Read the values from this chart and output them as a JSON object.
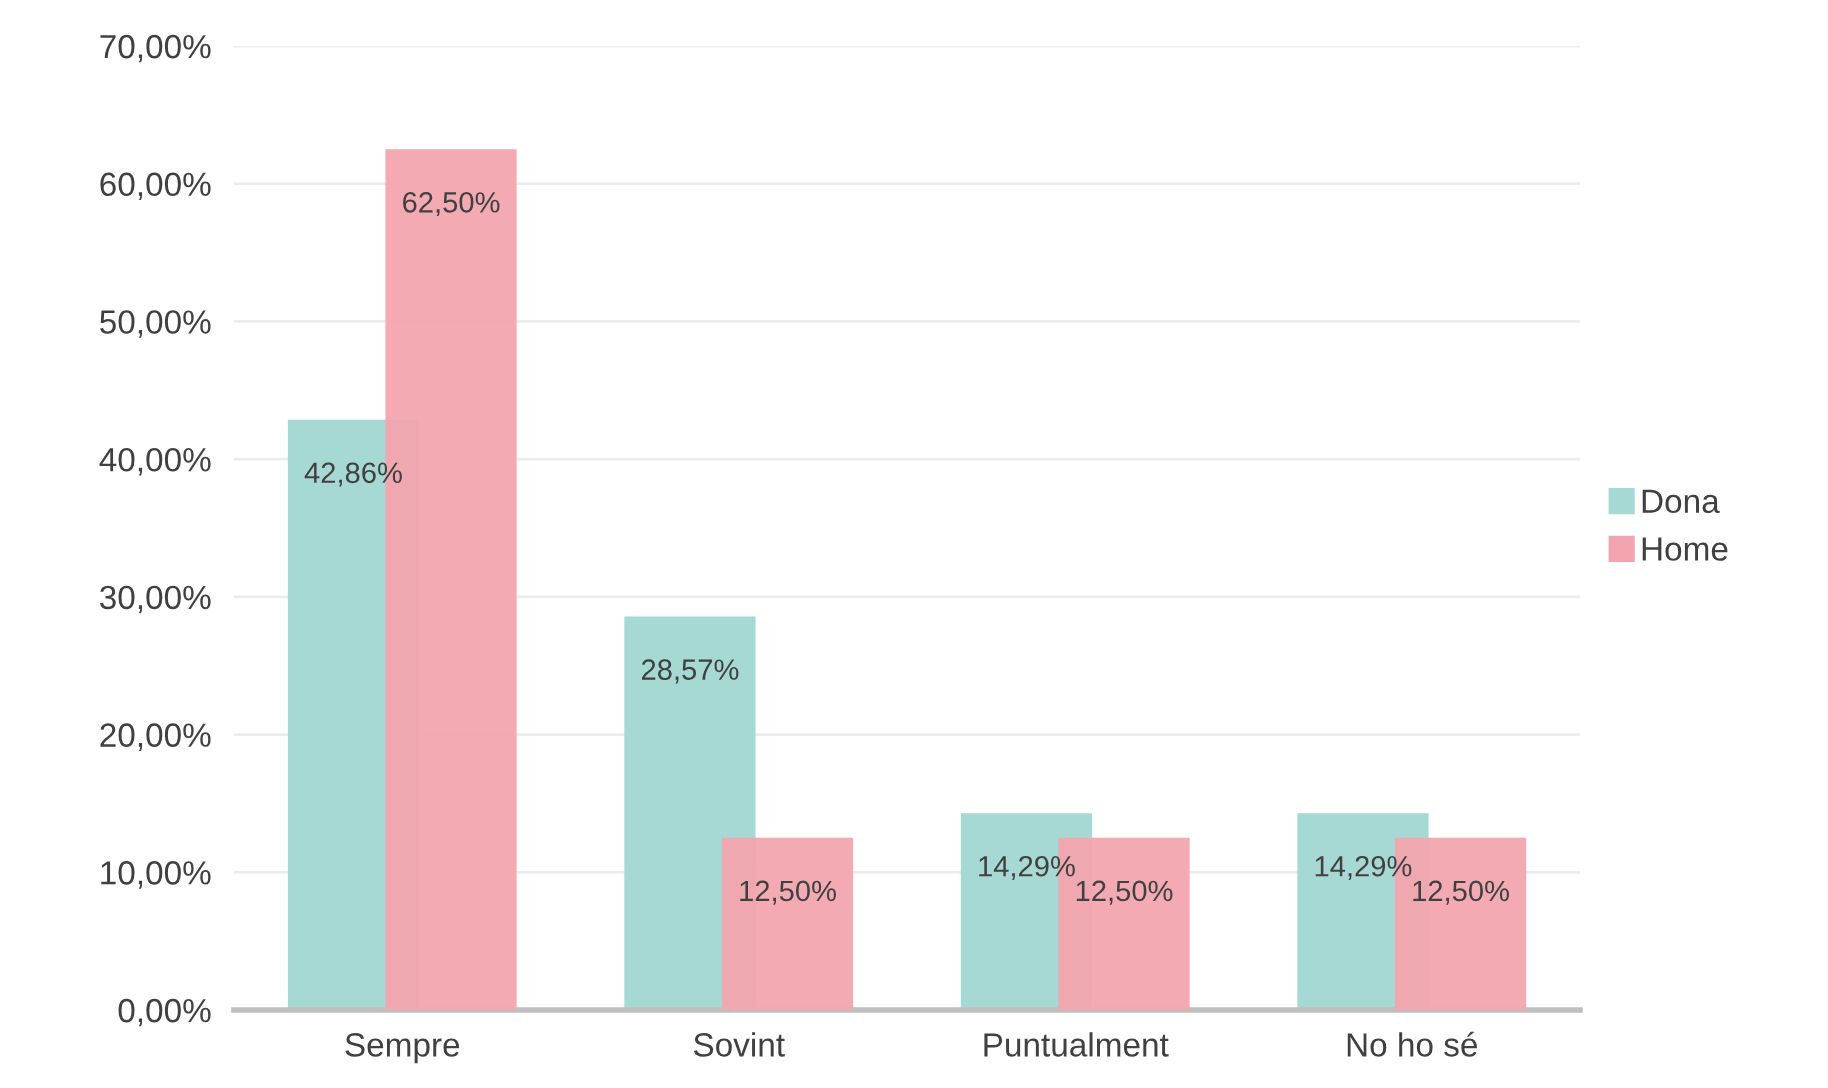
{
  "chart_data": {
    "type": "bar",
    "categories": [
      "Sempre",
      "Sovint",
      "Puntualment",
      "No ho sé"
    ],
    "series": [
      {
        "name": "Dona",
        "color": "#a6d8d4",
        "values": [
          42.86,
          28.57,
          14.29,
          14.29
        ],
        "value_labels": [
          "42,86%",
          "28,57%",
          "14,29%",
          "14,29%"
        ]
      },
      {
        "name": "Home",
        "color": "#f2a5ae",
        "values": [
          62.5,
          12.5,
          12.5,
          12.5
        ],
        "value_labels": [
          "62,50%",
          "12,50%",
          "12,50%",
          "12,50%"
        ]
      }
    ],
    "ylim": [
      0,
      70
    ],
    "yticks": [
      {
        "value": 0,
        "label": "0,00%"
      },
      {
        "value": 10,
        "label": "10,00%"
      },
      {
        "value": 20,
        "label": "20,00%"
      },
      {
        "value": 30,
        "label": "30,00%"
      },
      {
        "value": 40,
        "label": "40,00%"
      },
      {
        "value": 50,
        "label": "50,00%"
      },
      {
        "value": 60,
        "label": "60,00%"
      },
      {
        "value": 70,
        "label": "70,00%"
      }
    ],
    "grid": "y",
    "legend": "right"
  }
}
